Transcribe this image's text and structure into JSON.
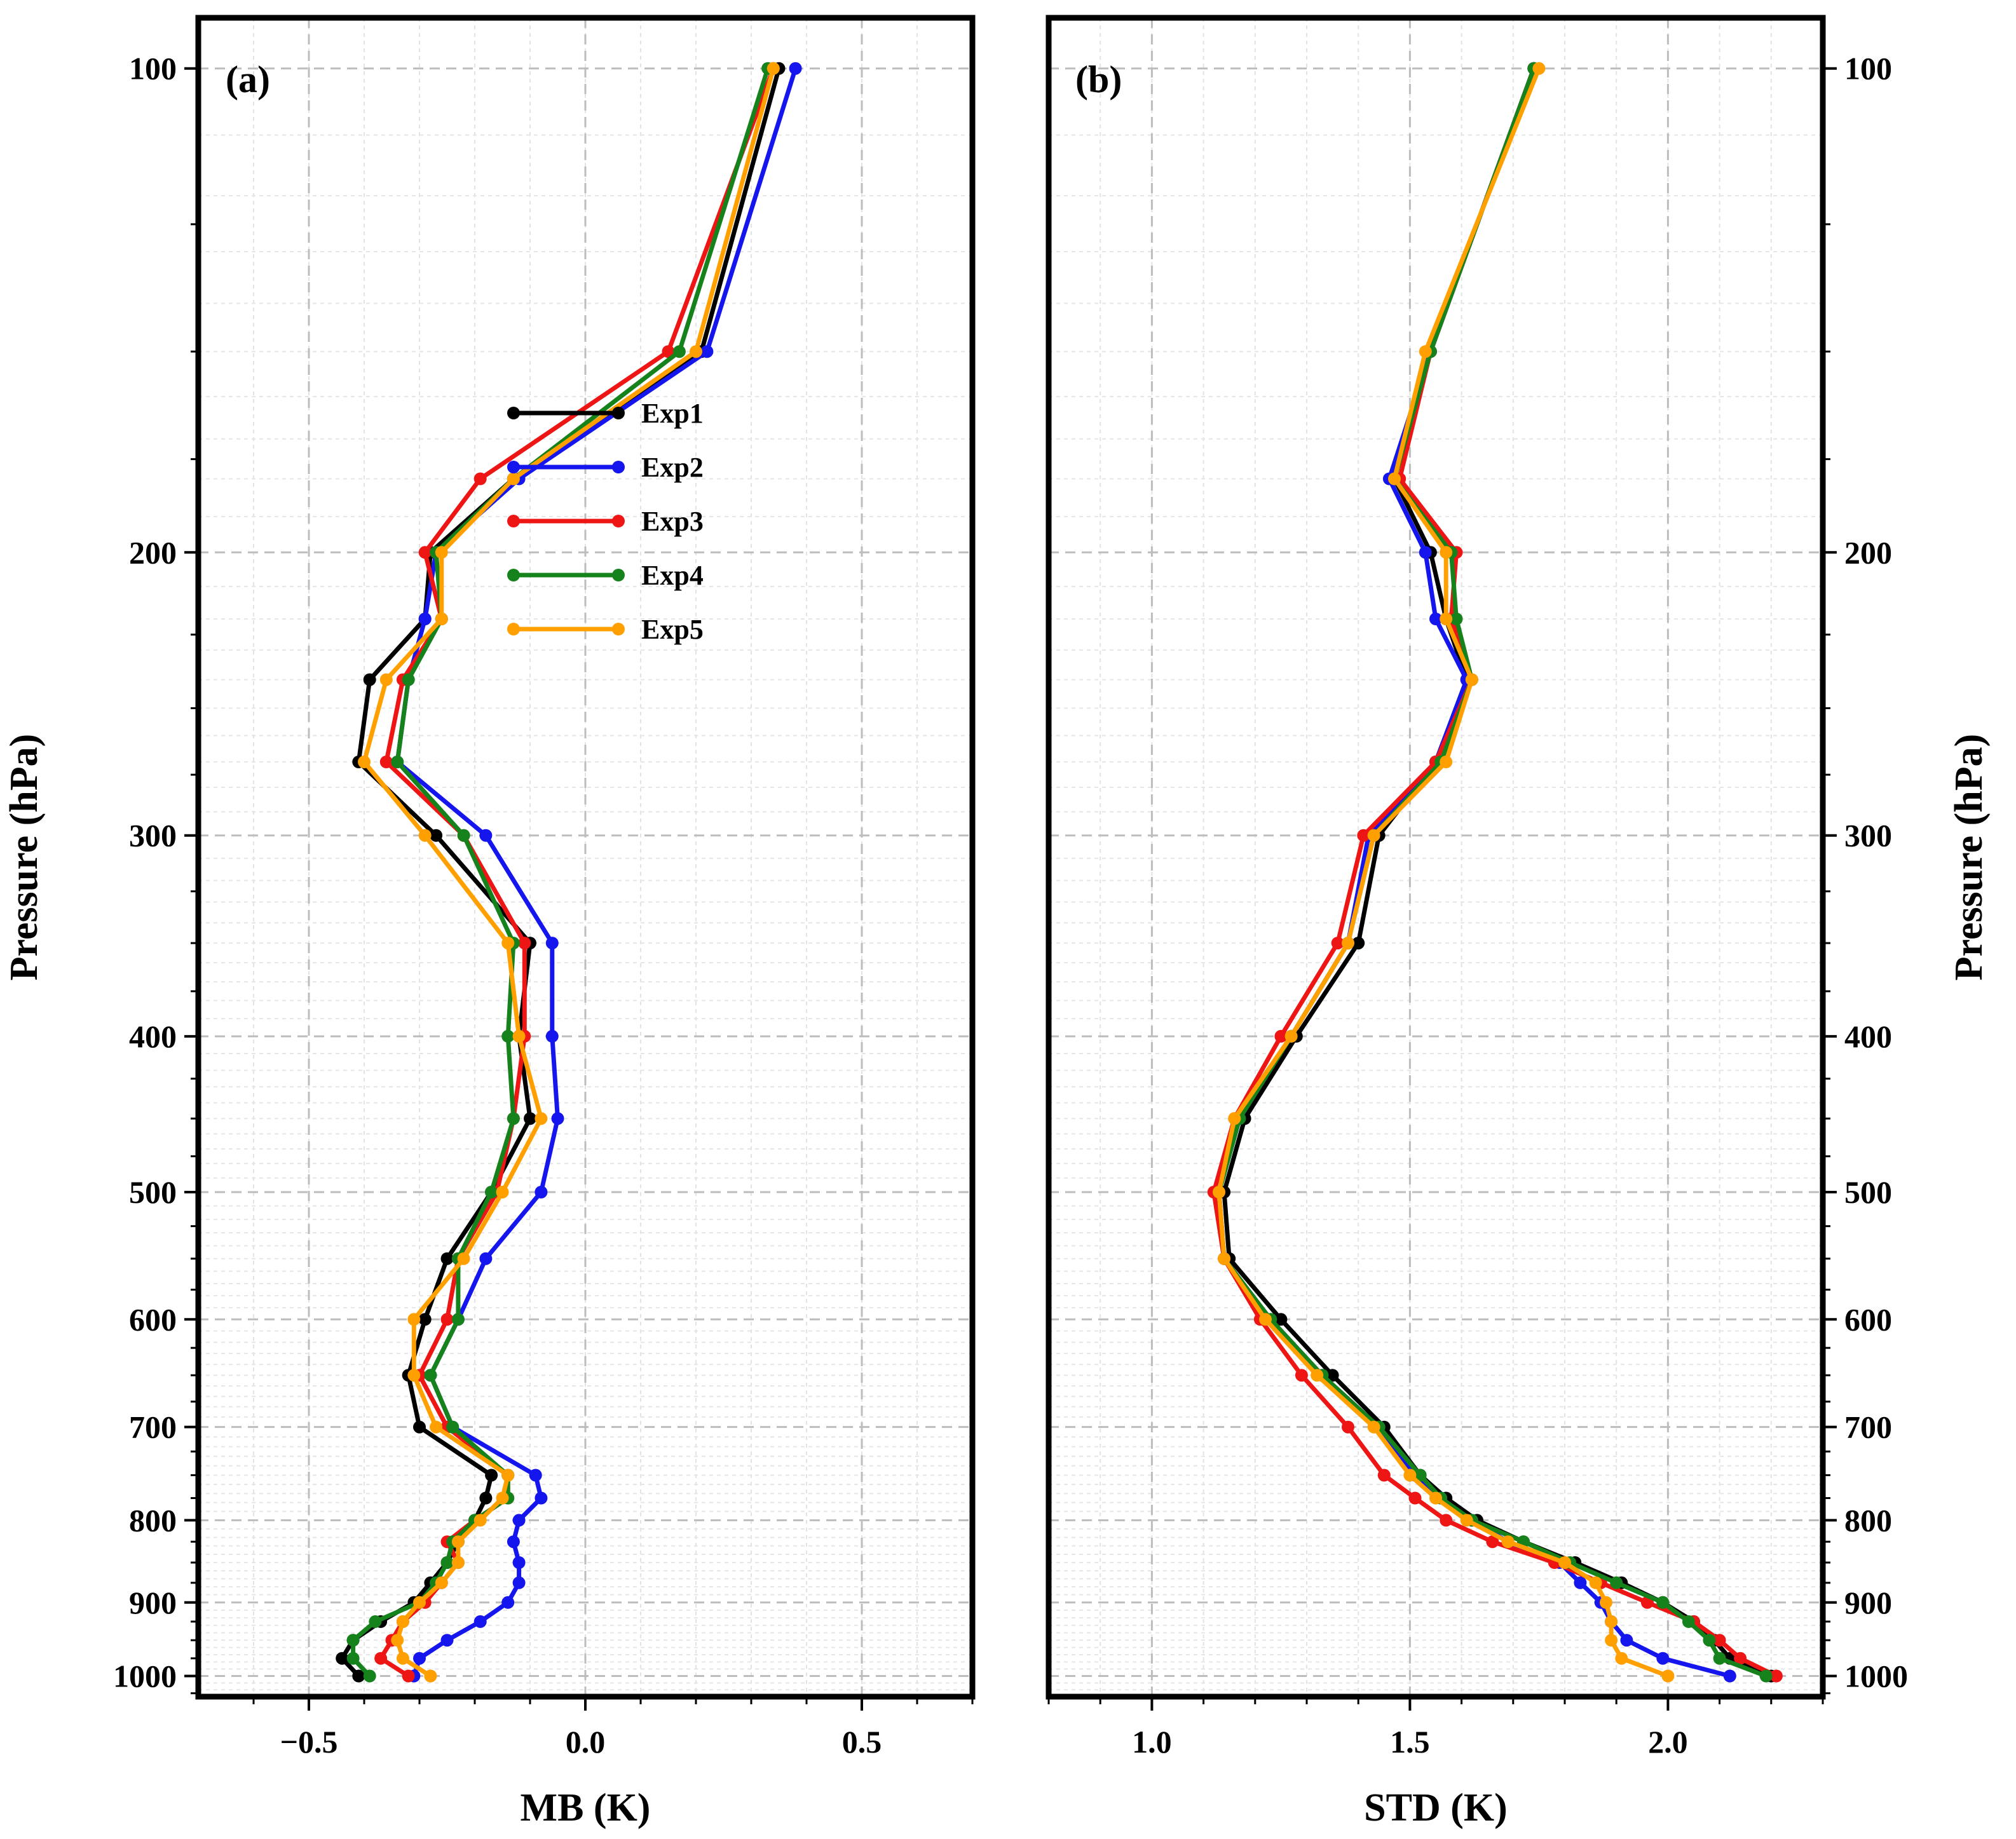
{
  "chart_data": [
    {
      "type": "line",
      "panel_label": "(a)",
      "xlabel": "MB (K)",
      "ylabel": "Pressure (hPa)",
      "xlim": [
        -0.7,
        0.7
      ],
      "ylim": [
        1030,
        93
      ],
      "yscale": "log",
      "grid": true,
      "x_ticks": [
        -0.5,
        0.0,
        0.5
      ],
      "x_tick_labels": [
        "−0.5",
        "0.0",
        "0.5"
      ],
      "y_ticks": [
        100,
        200,
        300,
        400,
        500,
        600,
        700,
        800,
        900,
        1000
      ],
      "y_tick_labels": [
        "100",
        "200",
        "300",
        "400",
        "500",
        "600",
        "700",
        "800",
        "900",
        "1000"
      ],
      "legend": {
        "position": "upper-center",
        "entries": [
          "Exp1",
          "Exp2",
          "Exp3",
          "Exp4",
          "Exp5"
        ]
      },
      "pressure_levels": [
        100,
        150,
        180,
        200,
        220,
        240,
        270,
        300,
        350,
        400,
        450,
        500,
        550,
        600,
        650,
        700,
        750,
        775,
        800,
        825,
        850,
        875,
        900,
        925,
        950,
        975,
        1000
      ],
      "series": [
        {
          "name": "Exp1",
          "color": "#000000",
          "x": [
            0.35,
            0.21,
            -0.13,
            -0.28,
            -0.29,
            -0.39,
            -0.41,
            -0.27,
            -0.1,
            -0.12,
            -0.1,
            -0.17,
            -0.25,
            -0.29,
            -0.32,
            -0.3,
            -0.17,
            -0.18,
            -0.2,
            -0.23,
            -0.25,
            -0.28,
            -0.31,
            -0.37,
            -0.42,
            -0.44,
            -0.41
          ]
        },
        {
          "name": "Exp2",
          "color": "#1515ee",
          "x": [
            0.38,
            0.22,
            -0.12,
            -0.27,
            -0.29,
            -0.32,
            -0.34,
            -0.18,
            -0.06,
            -0.06,
            -0.05,
            -0.08,
            -0.18,
            -0.23,
            -0.28,
            -0.24,
            -0.09,
            -0.08,
            -0.12,
            -0.13,
            -0.12,
            -0.12,
            -0.14,
            -0.19,
            -0.25,
            -0.3,
            -0.31
          ]
        },
        {
          "name": "Exp3",
          "color": "#ee1515",
          "x": [
            0.34,
            0.15,
            -0.19,
            -0.29,
            -0.26,
            -0.33,
            -0.36,
            -0.22,
            -0.11,
            -0.11,
            -0.13,
            -0.16,
            -0.23,
            -0.25,
            -0.3,
            -0.25,
            -0.14,
            -0.14,
            -0.2,
            -0.25,
            -0.23,
            -0.26,
            -0.29,
            -0.33,
            -0.35,
            -0.37,
            -0.32
          ]
        },
        {
          "name": "Exp4",
          "color": "#16821b",
          "x": [
            0.33,
            0.17,
            -0.13,
            -0.27,
            -0.26,
            -0.32,
            -0.34,
            -0.22,
            -0.13,
            -0.14,
            -0.13,
            -0.17,
            -0.23,
            -0.23,
            -0.28,
            -0.24,
            -0.14,
            -0.14,
            -0.2,
            -0.24,
            -0.25,
            -0.27,
            -0.3,
            -0.38,
            -0.42,
            -0.42,
            -0.39
          ]
        },
        {
          "name": "Exp5",
          "color": "#ffa000",
          "x": [
            0.34,
            0.2,
            -0.13,
            -0.26,
            -0.26,
            -0.36,
            -0.4,
            -0.29,
            -0.14,
            -0.12,
            -0.08,
            -0.15,
            -0.22,
            -0.31,
            -0.31,
            -0.27,
            -0.14,
            -0.15,
            -0.19,
            -0.23,
            -0.23,
            -0.26,
            -0.3,
            -0.33,
            -0.34,
            -0.33,
            -0.28
          ]
        }
      ]
    },
    {
      "type": "line",
      "panel_label": "(b)",
      "xlabel": "STD (K)",
      "ylabel": "Pressure (hPa)",
      "xlim": [
        0.8,
        2.3
      ],
      "ylim": [
        1030,
        93
      ],
      "yscale": "log",
      "grid": true,
      "x_ticks": [
        1.0,
        1.5,
        2.0
      ],
      "x_tick_labels": [
        "1.0",
        "1.5",
        "2.0"
      ],
      "y_ticks": [
        100,
        200,
        300,
        400,
        500,
        600,
        700,
        800,
        900,
        1000
      ],
      "y_tick_labels": [
        "100",
        "200",
        "300",
        "400",
        "500",
        "600",
        "700",
        "800",
        "900",
        "1000"
      ],
      "pressure_levels": [
        100,
        150,
        180,
        200,
        220,
        240,
        270,
        300,
        350,
        400,
        450,
        500,
        550,
        600,
        650,
        700,
        750,
        775,
        800,
        825,
        850,
        875,
        900,
        925,
        950,
        975,
        1000
      ],
      "series": [
        {
          "name": "Exp1",
          "color": "#000000",
          "x": [
            1.74,
            1.54,
            1.47,
            1.54,
            1.57,
            1.61,
            1.55,
            1.44,
            1.4,
            1.28,
            1.18,
            1.14,
            1.15,
            1.25,
            1.35,
            1.45,
            1.52,
            1.57,
            1.63,
            1.72,
            1.82,
            1.91,
            1.99,
            2.05,
            2.09,
            2.12,
            2.2
          ]
        },
        {
          "name": "Exp2",
          "color": "#1515ee",
          "x": [
            1.74,
            1.54,
            1.46,
            1.53,
            1.55,
            1.61,
            1.55,
            1.42,
            1.38,
            1.27,
            1.17,
            1.13,
            1.14,
            1.23,
            1.33,
            1.44,
            1.51,
            1.56,
            1.62,
            1.69,
            1.79,
            1.83,
            1.87,
            1.89,
            1.92,
            1.99,
            2.12
          ]
        },
        {
          "name": "Exp3",
          "color": "#ee1515",
          "x": [
            1.74,
            1.54,
            1.48,
            1.59,
            1.58,
            1.62,
            1.55,
            1.41,
            1.36,
            1.25,
            1.16,
            1.12,
            1.14,
            1.21,
            1.29,
            1.38,
            1.45,
            1.51,
            1.57,
            1.66,
            1.78,
            1.87,
            1.96,
            2.05,
            2.1,
            2.14,
            2.21
          ]
        },
        {
          "name": "Exp4",
          "color": "#16821b",
          "x": [
            1.74,
            1.54,
            1.47,
            1.58,
            1.59,
            1.62,
            1.56,
            1.43,
            1.38,
            1.27,
            1.17,
            1.13,
            1.14,
            1.23,
            1.33,
            1.44,
            1.52,
            1.56,
            1.62,
            1.72,
            1.81,
            1.9,
            1.99,
            2.04,
            2.08,
            2.1,
            2.19
          ]
        },
        {
          "name": "Exp5",
          "color": "#ffa000",
          "x": [
            1.75,
            1.53,
            1.47,
            1.57,
            1.57,
            1.62,
            1.57,
            1.43,
            1.38,
            1.27,
            1.16,
            1.13,
            1.14,
            1.22,
            1.32,
            1.43,
            1.5,
            1.55,
            1.61,
            1.69,
            1.8,
            1.86,
            1.88,
            1.89,
            1.89,
            1.91,
            2.0
          ]
        }
      ]
    }
  ]
}
